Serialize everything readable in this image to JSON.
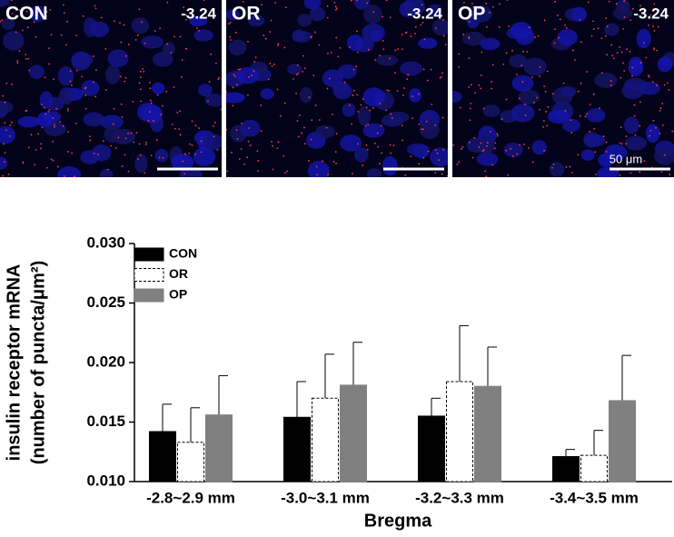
{
  "panels": [
    {
      "label": "CON",
      "bregma": "-3.24"
    },
    {
      "label": "OR",
      "bregma": "-3.24"
    },
    {
      "label": "OP",
      "bregma": "-3.24"
    }
  ],
  "scale_bar": "50 μm",
  "chart_data": {
    "type": "bar",
    "y_label": [
      "insulin receptor mRNA",
      "(number of puncta/μm²)"
    ],
    "x_label": "Bregma",
    "categories": [
      "-2.8~2.9 mm",
      "-3.0~3.1 mm",
      "-3.2~3.3 mm",
      "-3.4~3.5 mm"
    ],
    "series": [
      {
        "name": "CON",
        "color": "#000000",
        "line_style": "solid",
        "values": [
          0.0142,
          0.0154,
          0.0155,
          0.0121
        ],
        "errors": [
          0.0023,
          0.003,
          0.0015,
          0.0006
        ]
      },
      {
        "name": "OR",
        "color": "#ffffff",
        "line_style": "dashed",
        "values": [
          0.0133,
          0.017,
          0.0184,
          0.0122
        ],
        "errors": [
          0.0029,
          0.0037,
          0.0047,
          0.0021
        ]
      },
      {
        "name": "OP",
        "color": "#808080",
        "line_style": "solid",
        "values": [
          0.0156,
          0.0181,
          0.018,
          0.0168
        ],
        "errors": [
          0.0033,
          0.0036,
          0.0033,
          0.0038
        ]
      }
    ],
    "ylim": [
      0.01,
      0.03
    ],
    "yticks": [
      {
        "value": 0.01,
        "label": "0.010"
      },
      0.015,
      {
        "value": 0.02,
        "label": "0.020"
      },
      0.025,
      {
        "value": 0.03,
        "label": "0.030"
      }
    ],
    "legend": "top-left"
  }
}
